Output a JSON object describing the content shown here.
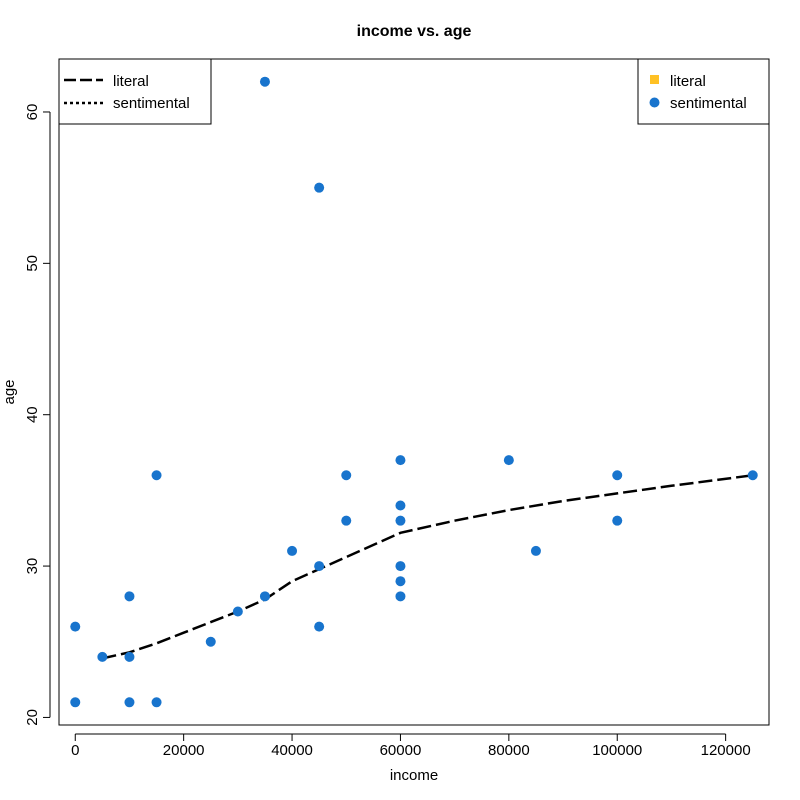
{
  "chart_data": {
    "type": "scatter",
    "title": "income vs. age",
    "xlabel": "income",
    "ylabel": "age",
    "xlim": [
      -3000,
      128000
    ],
    "ylim": [
      19.5,
      63.5
    ],
    "x_ticks": [
      0,
      20000,
      40000,
      60000,
      80000,
      100000,
      120000
    ],
    "y_ticks": [
      20,
      30,
      40,
      50,
      60
    ],
    "grid": false,
    "series": [
      {
        "name": "sentimental",
        "marker": "circle",
        "color": "#1874CD",
        "points": [
          [
            0,
            26
          ],
          [
            0,
            21
          ],
          [
            5000,
            24
          ],
          [
            10000,
            28
          ],
          [
            10000,
            24
          ],
          [
            10000,
            21
          ],
          [
            15000,
            36
          ],
          [
            15000,
            21
          ],
          [
            25000,
            25
          ],
          [
            30000,
            27
          ],
          [
            35000,
            62
          ],
          [
            35000,
            28
          ],
          [
            40000,
            31
          ],
          [
            45000,
            55
          ],
          [
            45000,
            30
          ],
          [
            45000,
            26
          ],
          [
            50000,
            36
          ],
          [
            50000,
            33
          ],
          [
            60000,
            37
          ],
          [
            60000,
            34
          ],
          [
            60000,
            33
          ],
          [
            60000,
            30
          ],
          [
            60000,
            29
          ],
          [
            60000,
            28
          ],
          [
            80000,
            37
          ],
          [
            85000,
            31
          ],
          [
            100000,
            36
          ],
          [
            100000,
            33
          ],
          [
            125000,
            36
          ]
        ]
      },
      {
        "name": "literal",
        "marker": "square",
        "color": "#FFC125",
        "points": []
      }
    ],
    "lines": [
      {
        "name": "literal",
        "style": "longdash",
        "color": "#000000",
        "points": [
          [
            5000,
            23.9
          ],
          [
            10000,
            24.3
          ],
          [
            15000,
            24.9
          ],
          [
            20000,
            25.6
          ],
          [
            25000,
            26.3
          ],
          [
            30000,
            27.0
          ],
          [
            35000,
            27.8
          ],
          [
            40000,
            29.0
          ],
          [
            45000,
            29.8
          ],
          [
            50000,
            30.6
          ],
          [
            55000,
            31.4
          ],
          [
            60000,
            32.2
          ],
          [
            70000,
            33.0
          ],
          [
            80000,
            33.7
          ],
          [
            90000,
            34.3
          ],
          [
            100000,
            34.8
          ],
          [
            110000,
            35.3
          ],
          [
            125000,
            36.0
          ]
        ]
      },
      {
        "name": "sentimental",
        "style": "dotted",
        "color": "#000000",
        "points": []
      }
    ],
    "legends": [
      {
        "placement": "top-left",
        "entries": [
          {
            "label": "literal",
            "symbol": "longdash"
          },
          {
            "label": "sentimental",
            "symbol": "dotted"
          }
        ]
      },
      {
        "placement": "top-right",
        "entries": [
          {
            "label": "literal",
            "symbol": "square",
            "color": "#FFC125"
          },
          {
            "label": "sentimental",
            "symbol": "circle",
            "color": "#1874CD"
          }
        ]
      }
    ]
  }
}
